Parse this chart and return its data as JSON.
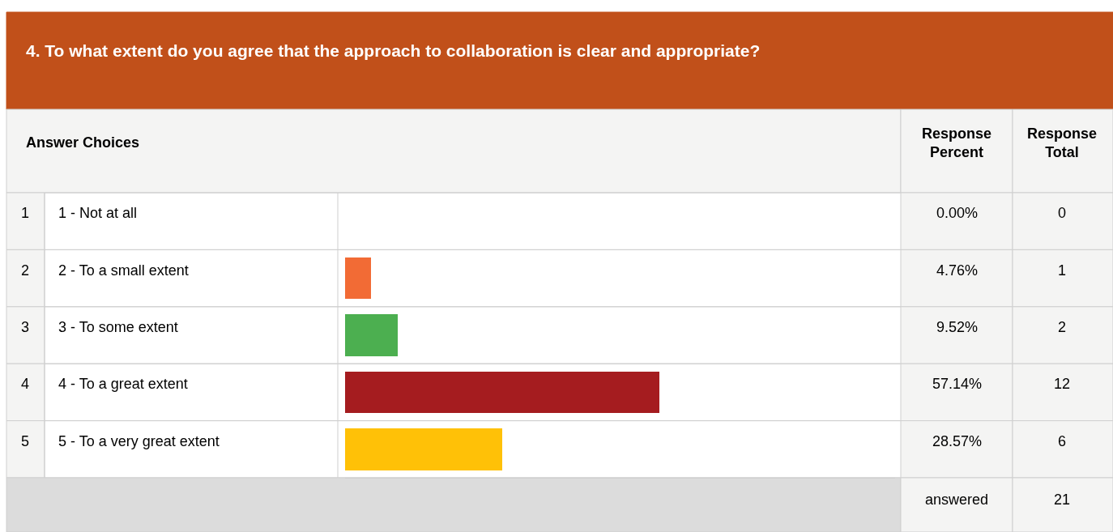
{
  "chart_data": {
    "type": "bar",
    "orientation": "horizontal",
    "title": "4. To what extent do you agree that the approach to collaboration is clear and appropriate?",
    "ylabel": "Answer Choices",
    "categories": [
      "1 - Not at all",
      "2 - To a small extent",
      "3 - To some extent",
      "4 - To a great extent",
      "5 - To a very great extent"
    ],
    "values": [
      0,
      4.76,
      9.52,
      57.14,
      28.57
    ],
    "value_labels": [
      "0.00%",
      "4.76%",
      "9.52%",
      "57.14%",
      "28.57%"
    ],
    "colors": [
      "#9e9e9e",
      "#f26b35",
      "#4caf50",
      "#a51c1f",
      "#ffc107"
    ],
    "xlim": [
      0,
      100
    ],
    "annotations": [
      "Response Percent",
      "Response Total",
      "answered",
      "21",
      "1",
      "2",
      "3",
      "4",
      "5",
      "0",
      "1",
      "2",
      "12",
      "6"
    ]
  }
}
